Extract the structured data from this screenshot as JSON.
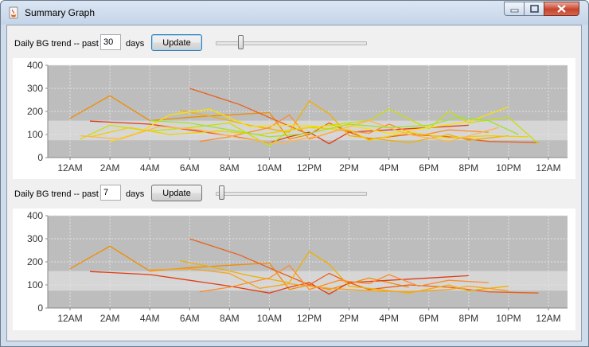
{
  "window": {
    "title": "Summary Graph",
    "icon": "java-cup-icon",
    "controls": [
      "minimize-icon",
      "maximize-icon",
      "close-icon"
    ]
  },
  "panels": [
    {
      "label_prefix": "Daily BG trend -- past",
      "days_value": "30",
      "label_suffix": "days",
      "update_label": "Update",
      "slider_value": 30,
      "slider_max": 180
    },
    {
      "label_prefix": "Daily BG trend -- past",
      "days_value": "7",
      "label_suffix": "days",
      "update_label": "Update",
      "slider_value": 7,
      "slider_max": 180
    }
  ],
  "chart_data": [
    {
      "type": "line",
      "y_ticks": [
        "0",
        "100",
        "200",
        "300",
        "400"
      ],
      "ylim": [
        0,
        400
      ],
      "x_ticks": [
        "12AM",
        "2AM",
        "4AM",
        "6AM",
        "8AM",
        "10AM",
        "12PM",
        "2PM",
        "4PM",
        "6PM",
        "8PM",
        "10PM",
        "12AM"
      ],
      "x_range_hours": [
        0,
        24
      ],
      "target_band": [
        75,
        160
      ],
      "grid": true,
      "colors": {
        "background": "#bdbdbd",
        "band": "#d6d6d6",
        "grid": "#e2e2e2"
      },
      "series": [
        {
          "color": "#f18d00",
          "points": [
            [
              0,
              170
            ],
            [
              2,
              268
            ],
            [
              4,
              160
            ],
            [
              6,
              175
            ],
            [
              8,
              185
            ],
            [
              10,
              195
            ],
            [
              11,
              80
            ],
            [
              12,
              100
            ]
          ]
        },
        {
          "color": "#e23b10",
          "points": [
            [
              1,
              158
            ],
            [
              4,
              145
            ],
            [
              6,
              120
            ],
            [
              8,
              95
            ],
            [
              10,
              65
            ],
            [
              11,
              90
            ],
            [
              12,
              110
            ],
            [
              13,
              60
            ],
            [
              14,
              110
            ],
            [
              16,
              120
            ],
            [
              18,
              130
            ],
            [
              20,
              140
            ]
          ]
        },
        {
          "color": "#ec5f1a",
          "points": [
            [
              6,
              300
            ],
            [
              8.5,
              230
            ],
            [
              10.5,
              155
            ],
            [
              12,
              100
            ],
            [
              13,
              150
            ],
            [
              14,
              110
            ],
            [
              15,
              80
            ],
            [
              17,
              100
            ],
            [
              19,
              90
            ],
            [
              21,
              70
            ],
            [
              23.5,
              65
            ]
          ]
        },
        {
          "color": "#f1b000",
          "points": [
            [
              5.5,
              205
            ],
            [
              7,
              180
            ],
            [
              9,
              140
            ],
            [
              11,
              110
            ],
            [
              12,
              245
            ],
            [
              13,
              190
            ],
            [
              14,
              95
            ],
            [
              15.5,
              80
            ],
            [
              17,
              65
            ],
            [
              19,
              100
            ],
            [
              20,
              75
            ],
            [
              22,
              95
            ]
          ]
        },
        {
          "color": "#ff8c2a",
          "points": [
            [
              6.5,
              70
            ],
            [
              8,
              90
            ],
            [
              10,
              130
            ],
            [
              11,
              185
            ],
            [
              12,
              80
            ],
            [
              13.5,
              120
            ],
            [
              15,
              105
            ],
            [
              16,
              145
            ],
            [
              17.5,
              95
            ],
            [
              19,
              120
            ],
            [
              21,
              110
            ]
          ]
        },
        {
          "color": "#c9e000",
          "points": [
            [
              0.5,
              80
            ],
            [
              2,
              140
            ],
            [
              4,
              115
            ],
            [
              6,
              130
            ],
            [
              8,
              150
            ],
            [
              10,
              50
            ],
            [
              11,
              120
            ],
            [
              13,
              140
            ],
            [
              15,
              160
            ],
            [
              16,
              210
            ],
            [
              18,
              125
            ],
            [
              19,
              200
            ],
            [
              20,
              150
            ],
            [
              22,
              175
            ],
            [
              23.5,
              60
            ]
          ]
        },
        {
          "color": "#fbe000",
          "points": [
            [
              2,
              70
            ],
            [
              3.5,
              110
            ],
            [
              5,
              185
            ],
            [
              7,
              210
            ],
            [
              9,
              135
            ],
            [
              11,
              140
            ],
            [
              12.5,
              135
            ],
            [
              14,
              140
            ],
            [
              16,
              105
            ],
            [
              18,
              130
            ],
            [
              20,
              155
            ],
            [
              22,
              220
            ]
          ]
        },
        {
          "color": "#efd000",
          "points": [
            [
              1,
              90
            ],
            [
              3,
              130
            ],
            [
              5,
              100
            ],
            [
              7.5,
              115
            ],
            [
              9.5,
              100
            ],
            [
              12,
              130
            ],
            [
              14,
              120
            ],
            [
              15,
              75
            ],
            [
              17,
              110
            ],
            [
              19,
              85
            ],
            [
              21,
              95
            ],
            [
              23,
              90
            ]
          ]
        },
        {
          "color": "#ffb648",
          "points": [
            [
              0.5,
              95
            ],
            [
              2.5,
              80
            ],
            [
              4.5,
              135
            ],
            [
              6.5,
              120
            ],
            [
              8.5,
              85
            ],
            [
              10.5,
              60
            ],
            [
              12.5,
              95
            ],
            [
              15,
              160
            ],
            [
              17,
              100
            ],
            [
              19,
              70
            ],
            [
              21.5,
              130
            ]
          ]
        },
        {
          "color": "#9fe22c",
          "points": [
            [
              4,
              160
            ],
            [
              6,
              150
            ],
            [
              8,
              120
            ],
            [
              10,
              90
            ],
            [
              12,
              105
            ],
            [
              14,
              145
            ],
            [
              16,
              130
            ],
            [
              18,
              140
            ],
            [
              19.5,
              175
            ],
            [
              21,
              160
            ],
            [
              22.5,
              100
            ]
          ]
        }
      ]
    },
    {
      "type": "line",
      "y_ticks": [
        "0",
        "100",
        "200",
        "300",
        "400"
      ],
      "ylim": [
        0,
        400
      ],
      "x_ticks": [
        "12AM",
        "2AM",
        "4AM",
        "6AM",
        "8AM",
        "10AM",
        "12PM",
        "2PM",
        "4PM",
        "6PM",
        "8PM",
        "10PM",
        "12AM"
      ],
      "x_range_hours": [
        0,
        24
      ],
      "target_band": [
        75,
        160
      ],
      "grid": true,
      "colors": {
        "background": "#bdbdbd",
        "band": "#d6d6d6",
        "grid": "#e2e2e2"
      },
      "series": [
        {
          "color": "#f18d00",
          "points": [
            [
              0,
              170
            ],
            [
              2,
              268
            ],
            [
              4,
              160
            ],
            [
              6,
              175
            ],
            [
              8,
              185
            ],
            [
              10,
              195
            ],
            [
              11,
              80
            ],
            [
              12,
              100
            ],
            [
              13,
              80
            ],
            [
              15,
              130
            ],
            [
              17,
              90
            ]
          ]
        },
        {
          "color": "#e23b10",
          "points": [
            [
              1,
              158
            ],
            [
              4,
              145
            ],
            [
              6,
              120
            ],
            [
              8,
              95
            ],
            [
              10,
              65
            ],
            [
              11,
              90
            ],
            [
              12,
              110
            ],
            [
              13,
              60
            ],
            [
              14,
              110
            ],
            [
              16,
              120
            ],
            [
              18,
              130
            ],
            [
              20,
              140
            ]
          ]
        },
        {
          "color": "#ec5f1a",
          "points": [
            [
              6,
              300
            ],
            [
              8.5,
              230
            ],
            [
              10.5,
              155
            ],
            [
              12,
              100
            ],
            [
              13,
              150
            ],
            [
              14,
              110
            ],
            [
              15,
              80
            ],
            [
              17,
              100
            ],
            [
              19,
              90
            ],
            [
              21,
              70
            ],
            [
              23.5,
              65
            ]
          ]
        },
        {
          "color": "#f1b000",
          "points": [
            [
              5.5,
              205
            ],
            [
              7,
              180
            ],
            [
              9,
              140
            ],
            [
              11,
              110
            ],
            [
              12,
              245
            ],
            [
              13,
              190
            ],
            [
              14,
              95
            ],
            [
              15.5,
              80
            ],
            [
              17,
              65
            ],
            [
              19,
              100
            ],
            [
              20,
              75
            ],
            [
              22,
              95
            ]
          ]
        },
        {
          "color": "#ff8c2a",
          "points": [
            [
              6.5,
              70
            ],
            [
              8,
              90
            ],
            [
              10,
              130
            ],
            [
              11,
              185
            ],
            [
              12,
              80
            ],
            [
              13.5,
              120
            ],
            [
              15,
              105
            ],
            [
              16,
              145
            ],
            [
              17.5,
              95
            ],
            [
              19,
              120
            ],
            [
              21,
              110
            ]
          ]
        },
        {
          "color": "#f7a21b",
          "points": [
            [
              4,
              165
            ],
            [
              6,
              170
            ],
            [
              8,
              150
            ],
            [
              9.5,
              85
            ],
            [
              11,
              105
            ],
            [
              13,
              85
            ],
            [
              15,
              75
            ],
            [
              17,
              70
            ],
            [
              19,
              80
            ],
            [
              20,
              95
            ],
            [
              22,
              75
            ]
          ]
        }
      ]
    }
  ]
}
